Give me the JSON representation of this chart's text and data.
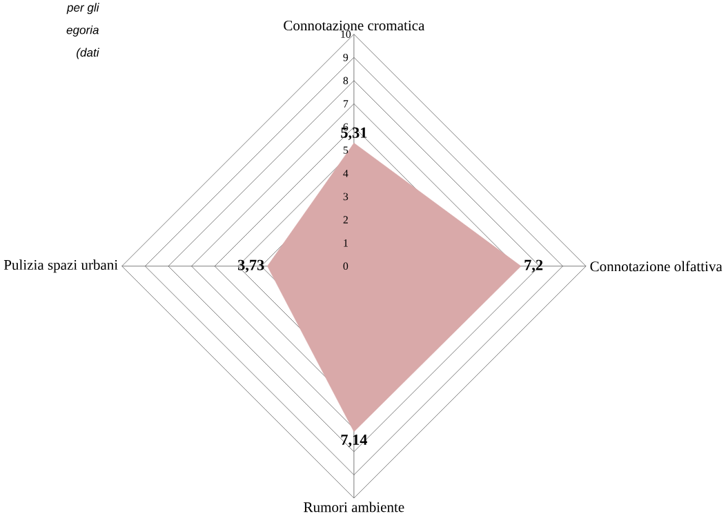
{
  "chart_data": {
    "type": "radar",
    "categories": [
      "Connotazione cromatica",
      "Connotazione olfattiva",
      "Rumori ambiente",
      "Pulizia spazi urbani"
    ],
    "series": [
      {
        "color": "#d9a9a9",
        "values": [
          5.31,
          7.2,
          7.14,
          3.73
        ],
        "value_labels": [
          "5,31",
          "7,2",
          "7,14",
          "3,73"
        ]
      }
    ],
    "ylim": [
      0,
      10
    ],
    "yticks": [
      0,
      1,
      2,
      3,
      4,
      5,
      6,
      7,
      8,
      9,
      10
    ],
    "grid": true,
    "data_labels": true,
    "annotations": [
      "per  gli",
      "egoria",
      "(dati"
    ]
  }
}
